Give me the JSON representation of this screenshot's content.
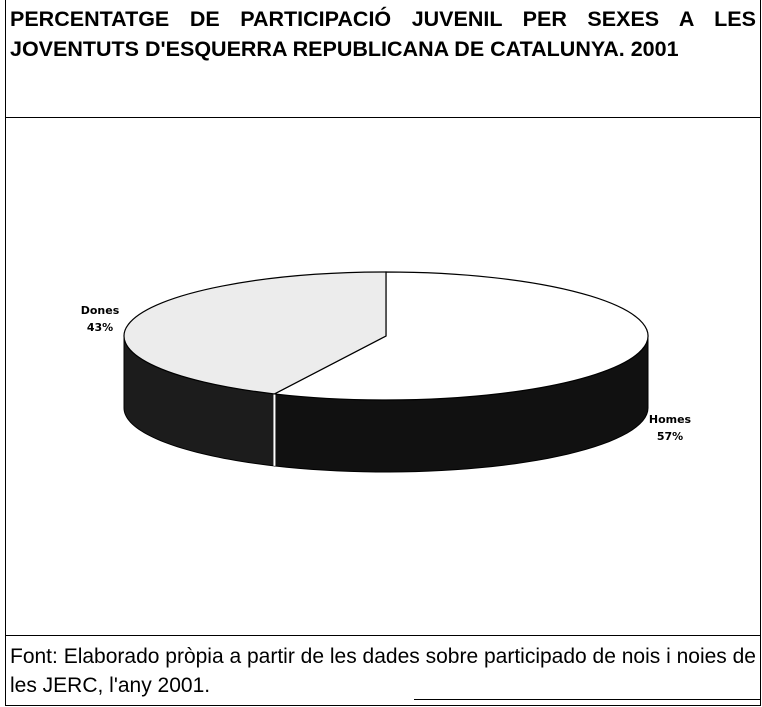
{
  "chart_data": {
    "type": "pie3d",
    "title": "PERCENTATGE DE PARTICIPACIÓ JUVENIL PER SEXES A LES JOVENTUTS D'ESQUERRA REPUBLICANA DE CATALUNYA. 2001",
    "categories": [
      "Dones",
      "Homes"
    ],
    "values": [
      43,
      57
    ],
    "value_labels": [
      "43%",
      "57%"
    ],
    "colors": [
      "#ececec",
      "#ffffff"
    ],
    "side_colors": [
      "#1c1c1c",
      "#111111"
    ],
    "note": "Font: Elaborado pròpia a partir de les dades sobre participado de nois i noies de les JERC, l'any 2001."
  }
}
